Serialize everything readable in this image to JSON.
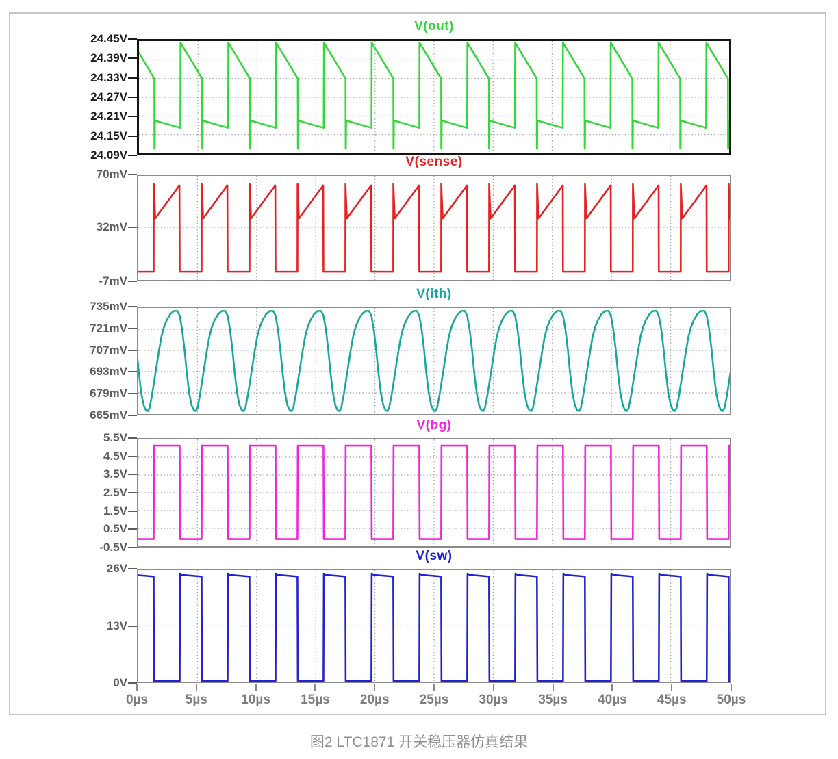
{
  "caption": "图2 LTC1871 开关稳压器仿真结果",
  "chart_data": {
    "type": "line",
    "grid": "dotted",
    "grid_color": "#9c9c9c",
    "x_unit": "µs",
    "xlim": [
      0,
      50
    ],
    "x_ticks": [
      "0µs",
      "5µs",
      "10µs",
      "15µs",
      "20µs",
      "25µs",
      "30µs",
      "35µs",
      "40µs",
      "45µs",
      "50µs"
    ],
    "x_tick_values": [
      0,
      5,
      10,
      15,
      20,
      25,
      30,
      35,
      40,
      45,
      50
    ],
    "panels": [
      {
        "title": "V(out)",
        "color": "#35d73a",
        "border_color": "#141414",
        "label_color": "#1a1a1a",
        "ylim": [
          24.09,
          24.45
        ],
        "y_ticks": [
          "24.45V",
          "24.39V",
          "24.33V",
          "24.27V",
          "24.21V",
          "24.15V",
          "24.09V"
        ],
        "y_tick_values": [
          24.45,
          24.39,
          24.33,
          24.27,
          24.21,
          24.15,
          24.09
        ],
        "waveform": {
          "period_us": 4.05,
          "cycle_points": [
            [
              1.3,
              24.33
            ],
            [
              1.31,
              24.105
            ],
            [
              1.33,
              24.105
            ],
            [
              1.35,
              24.195
            ],
            [
              3.5,
              24.172
            ],
            [
              3.52,
              24.445
            ],
            [
              5.35,
              24.33
            ]
          ]
        }
      },
      {
        "title": "V(sense)",
        "color": "#e42222",
        "border_color": "#8a8a8a",
        "label_color": "#5c5c5c",
        "ylim": [
          -7,
          70
        ],
        "y_ticks": [
          "70mV",
          "32mV",
          "-7mV"
        ],
        "y_tick_values": [
          70,
          32,
          -7
        ],
        "waveform": {
          "period_us": 4.05,
          "cycle_points": [
            [
              1.3,
              -1
            ],
            [
              1.31,
              64
            ],
            [
              1.37,
              51
            ],
            [
              1.43,
              38.5
            ],
            [
              1.55,
              40
            ],
            [
              3.48,
              63
            ],
            [
              3.5,
              -1
            ],
            [
              5.35,
              -1
            ]
          ]
        }
      },
      {
        "title": "V(ith)",
        "color": "#17a79b",
        "border_color": "#8a8a8a",
        "label_color": "#5c5c5c",
        "ylim": [
          665,
          735
        ],
        "y_ticks": [
          "735mV",
          "721mV",
          "707mV",
          "693mV",
          "679mV",
          "665mV"
        ],
        "y_tick_values": [
          735,
          721,
          707,
          693,
          679,
          665
        ],
        "waveform": {
          "period_us": 4.05,
          "cycle_points": [
            [
              0.8,
              667
            ],
            [
              0.95,
              669
            ],
            [
              1.15,
              677
            ],
            [
              1.35,
              687
            ],
            [
              1.55,
              697
            ],
            [
              1.75,
              707
            ],
            [
              1.95,
              716
            ],
            [
              2.15,
              722
            ],
            [
              2.4,
              727
            ],
            [
              2.7,
              731
            ],
            [
              3.0,
              733
            ],
            [
              3.3,
              733
            ],
            [
              3.5,
              730
            ],
            [
              3.7,
              721
            ],
            [
              3.9,
              708
            ],
            [
              4.1,
              692
            ],
            [
              4.3,
              679
            ],
            [
              4.5,
              671
            ],
            [
              4.7,
              667.5
            ],
            [
              4.85,
              667
            ]
          ]
        }
      },
      {
        "title": "V(bg)",
        "color": "#ed25dc",
        "border_color": "#8a8a8a",
        "label_color": "#5c5c5c",
        "ylim": [
          -0.5,
          5.5
        ],
        "y_ticks": [
          "5.5V",
          "4.5V",
          "3.5V",
          "2.5V",
          "1.5V",
          "0.5V",
          "-0.5V"
        ],
        "y_tick_values": [
          5.5,
          4.5,
          3.5,
          2.5,
          1.5,
          0.5,
          -0.5
        ],
        "waveform": {
          "period_us": 4.05,
          "cycle_points": [
            [
              1.3,
              -0.1
            ],
            [
              1.33,
              5.15
            ],
            [
              3.5,
              5.15
            ],
            [
              3.53,
              -0.1
            ],
            [
              5.35,
              -0.1
            ]
          ]
        }
      },
      {
        "title": "V(sw)",
        "color": "#2222cf",
        "border_color": "#8a8a8a",
        "label_color": "#5c5c5c",
        "ylim": [
          0,
          26
        ],
        "y_ticks": [
          "26V",
          "13V",
          "0V"
        ],
        "y_tick_values": [
          26,
          13,
          0
        ],
        "waveform": {
          "period_us": 4.05,
          "cycle_points": [
            [
              1.3,
              24.5
            ],
            [
              1.33,
              0.15
            ],
            [
              3.5,
              0.15
            ],
            [
              3.53,
              25.2
            ],
            [
              3.7,
              24.9
            ],
            [
              5.35,
              24.5
            ]
          ]
        }
      }
    ]
  }
}
